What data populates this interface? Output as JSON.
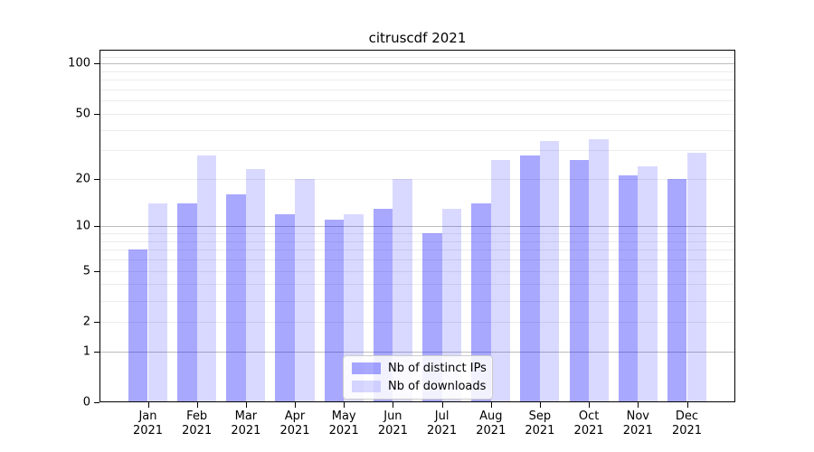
{
  "chart_data": {
    "type": "bar",
    "title": "citruscdf 2021",
    "categories": [
      "Jan 2021",
      "Feb 2021",
      "Mar 2021",
      "Apr 2021",
      "May 2021",
      "Jun 2021",
      "Jul 2021",
      "Aug 2021",
      "Sep 2021",
      "Oct 2021",
      "Nov 2021",
      "Dec 2021"
    ],
    "series": [
      {
        "name": "Nb of distinct IPs",
        "color": "#a6a6fa",
        "fill": "rgba(0,0,255,0.34)",
        "values": [
          7,
          14,
          16,
          12,
          11,
          13,
          9,
          14,
          28,
          26,
          21,
          20
        ]
      },
      {
        "name": "Nb of downloads",
        "color": "#d9d9fc",
        "fill": "rgba(0,0,255,0.15)",
        "values": [
          14,
          28,
          23,
          20,
          12,
          20,
          13,
          26,
          34,
          35,
          24,
          29
        ]
      }
    ],
    "yscale": "log1p",
    "ylim": [
      0,
      121
    ],
    "y_ticks": [
      100,
      50,
      20,
      10,
      5,
      2,
      1,
      0
    ],
    "grid": {
      "major": [
        1,
        10,
        100
      ],
      "minor": [
        2,
        3,
        4,
        5,
        6,
        7,
        8,
        9,
        20,
        30,
        40,
        50,
        60,
        70,
        80,
        90,
        110
      ],
      "major_color": "#bdbdbd",
      "minor_color": "#ececec"
    },
    "legend": {
      "position": "lower center",
      "entries": [
        "Nb of distinct IPs",
        "Nb of downloads"
      ]
    }
  }
}
